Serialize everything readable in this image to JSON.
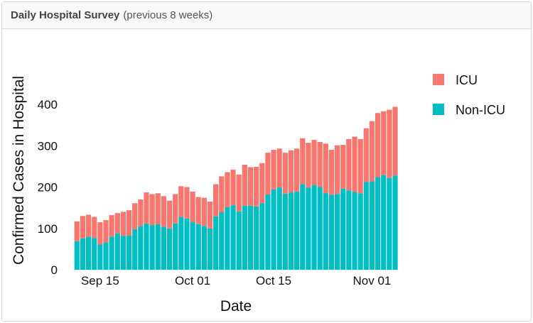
{
  "header": {
    "title": "Daily Hospital Survey",
    "subtitle": "(previous 8 weeks)"
  },
  "chart_data": {
    "type": "bar",
    "stacked": true,
    "xlabel": "Date",
    "ylabel": "Confirmed Cases in Hospital",
    "ylim": [
      0,
      410
    ],
    "yticks": [
      0,
      100,
      200,
      300,
      400
    ],
    "xticks": [
      {
        "label": "Sep 15",
        "index": 4
      },
      {
        "label": "Oct 01",
        "index": 20
      },
      {
        "label": "Oct 15",
        "index": 34
      },
      {
        "label": "Nov 01",
        "index": 51
      }
    ],
    "x_start": "Sep 11",
    "x_end": "Nov 05",
    "legend_position": "right",
    "series": [
      {
        "name": "ICU",
        "color": "#F8766D",
        "values": [
          48,
          54,
          53,
          51,
          54,
          54,
          52,
          49,
          58,
          61,
          63,
          64,
          75,
          75,
          75,
          74,
          67,
          71,
          74,
          76,
          73,
          66,
          68,
          65,
          78,
          87,
          85,
          86,
          89,
          99,
          93,
          96,
          97,
          101,
          96,
          94,
          99,
          102,
          104,
          111,
          108,
          109,
          109,
          119,
          109,
          118,
          106,
          124,
          134,
          131,
          130,
          145,
          155,
          154,
          165,
          166
        ]
      },
      {
        "name": "Non-ICU",
        "color": "#00BFC4",
        "values": [
          69,
          76,
          80,
          77,
          61,
          66,
          80,
          88,
          82,
          83,
          98,
          106,
          112,
          108,
          110,
          104,
          100,
          112,
          128,
          124,
          116,
          110,
          106,
          100,
          129,
          139,
          151,
          156,
          141,
          155,
          155,
          153,
          161,
          182,
          194,
          199,
          184,
          187,
          189,
          207,
          199,
          205,
          200,
          186,
          181,
          183,
          196,
          192,
          188,
          185,
          212,
          214,
          224,
          229,
          222,
          228
        ]
      }
    ]
  }
}
